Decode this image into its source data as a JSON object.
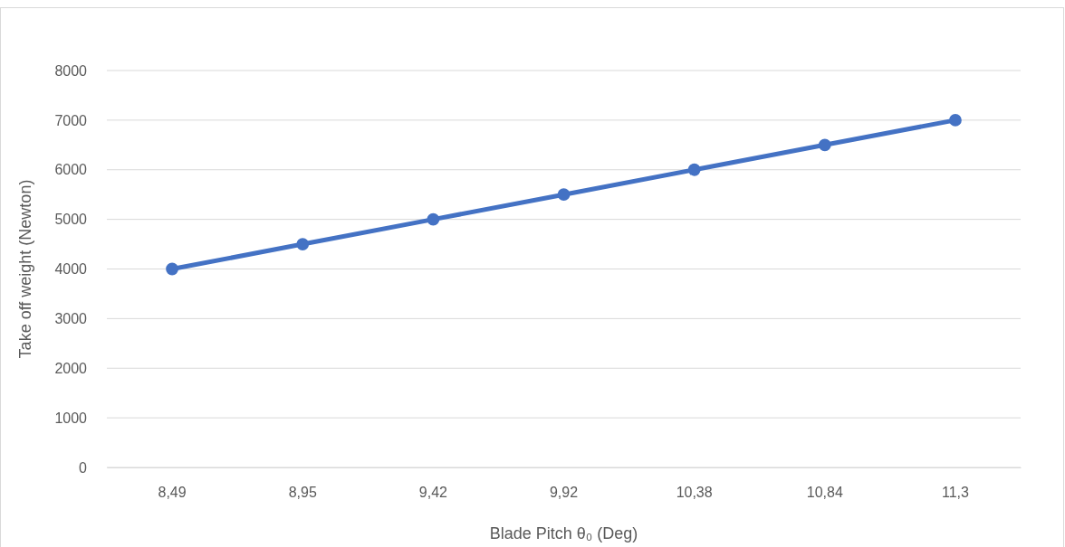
{
  "chart_data": {
    "type": "line",
    "xlabel": "Blade Pitch θ₀ (Deg)",
    "ylabel": "Take off weight (Newton)",
    "categories": [
      "8,49",
      "8,95",
      "9,42",
      "9,92",
      "10,38",
      "10,84",
      "11,3"
    ],
    "series": [
      {
        "color": "#4472c4",
        "values": [
          4000,
          4500,
          5000,
          5500,
          6000,
          6500,
          7000
        ]
      }
    ],
    "ylim": [
      0,
      8000
    ],
    "yticks": [
      0,
      1000,
      2000,
      3000,
      4000,
      5000,
      6000,
      7000,
      8000
    ],
    "grid": "y",
    "marker": "circle",
    "line_style": "solid"
  }
}
